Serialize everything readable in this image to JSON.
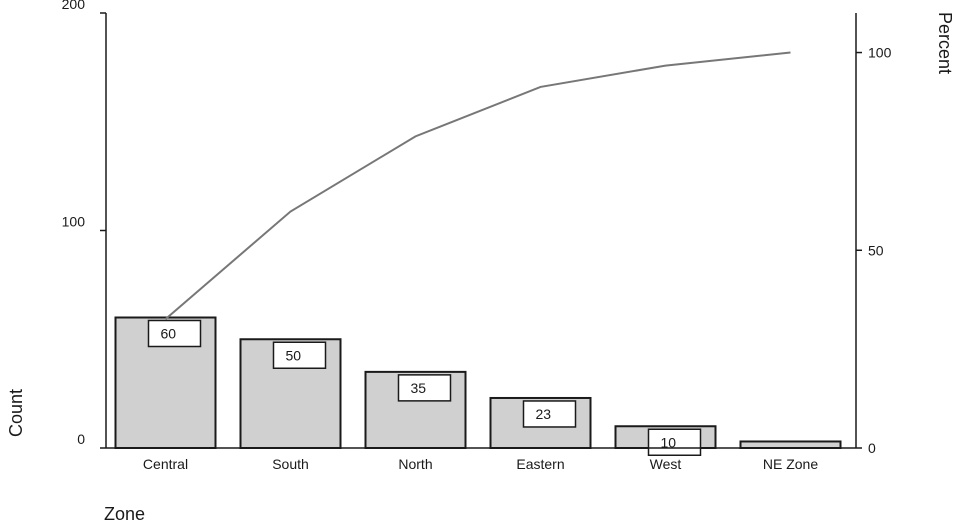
{
  "chart_data": {
    "type": "bar",
    "categories": [
      "Central",
      "South",
      "North",
      "Eastern",
      "West",
      "NE Zone"
    ],
    "values": [
      60,
      50,
      35,
      23,
      10,
      3
    ],
    "data_labels": [
      "60",
      "50",
      "35",
      "23",
      "10",
      ""
    ],
    "cumulative_percent": [
      32.6,
      59.8,
      78.8,
      91.3,
      96.7,
      100
    ],
    "xlabel": "Zone",
    "ylabel": "Count",
    "y2label": "Percent",
    "ylim": [
      0,
      200
    ],
    "y2lim": [
      0,
      110
    ],
    "yticks": [
      0,
      100,
      200
    ],
    "y2ticks": [
      0,
      50,
      100
    ],
    "grid": false,
    "colors": {
      "bar_fill": "#d0d0d0",
      "bar_stroke": "#1a1a1a",
      "line": "#777777",
      "axis": "#1a1a1a"
    }
  }
}
